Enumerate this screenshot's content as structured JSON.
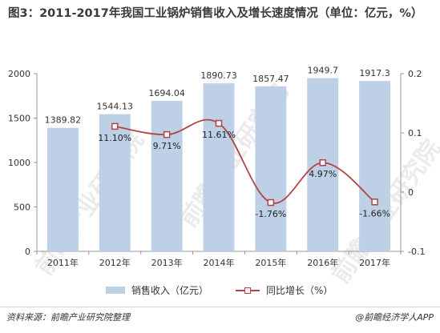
{
  "title": "图3：2011-2017年我国工业锅炉销售收入及增长速度情况（单位：亿元，%）",
  "chart_data": {
    "type": "bar",
    "title": "图3：2011-2017年我国工业锅炉销售收入及增长速度情况（单位：亿元，%）",
    "categories": [
      "2011年",
      "2012年",
      "2013年",
      "2014年",
      "2015年",
      "2016年",
      "2017年"
    ],
    "series": [
      {
        "name": "销售收入（亿元）",
        "type": "bar",
        "axis": "left",
        "values": [
          1389.82,
          1544.13,
          1694.04,
          1890.73,
          1857.47,
          1949.7,
          1917.3
        ],
        "labels": [
          "1389.82",
          "1544.13",
          "1694.04",
          "1890.73",
          "1857.47",
          "1949.7",
          "1917.3"
        ],
        "color": "#bdd0e6"
      },
      {
        "name": "同比增长（%）",
        "type": "line",
        "axis": "right",
        "values": [
          null,
          0.111,
          0.0971,
          0.1161,
          -0.0176,
          0.0497,
          -0.0166
        ],
        "labels": [
          "",
          "11.10%",
          "9.71%",
          "11.61%",
          "-1.76%",
          "4.97%",
          "-1.66%"
        ],
        "color": "#b24444"
      }
    ],
    "y_left": {
      "min": 0,
      "max": 2000,
      "ticks": [
        "0",
        "500",
        "1000",
        "1500",
        "2000"
      ]
    },
    "y_right": {
      "min": -0.1,
      "max": 0.2,
      "ticks": [
        "-0.1",
        "0",
        "0.1",
        "0.2"
      ]
    },
    "grid": false,
    "legend": "bottom"
  },
  "legend": {
    "bar_label": "销售收入（亿元）",
    "line_label": "同比增长（%）"
  },
  "footer": {
    "source": "资料来源：前瞻产业研究院整理",
    "brand": "@前瞻经济学人APP"
  },
  "watermark": "前瞻产业研究院"
}
